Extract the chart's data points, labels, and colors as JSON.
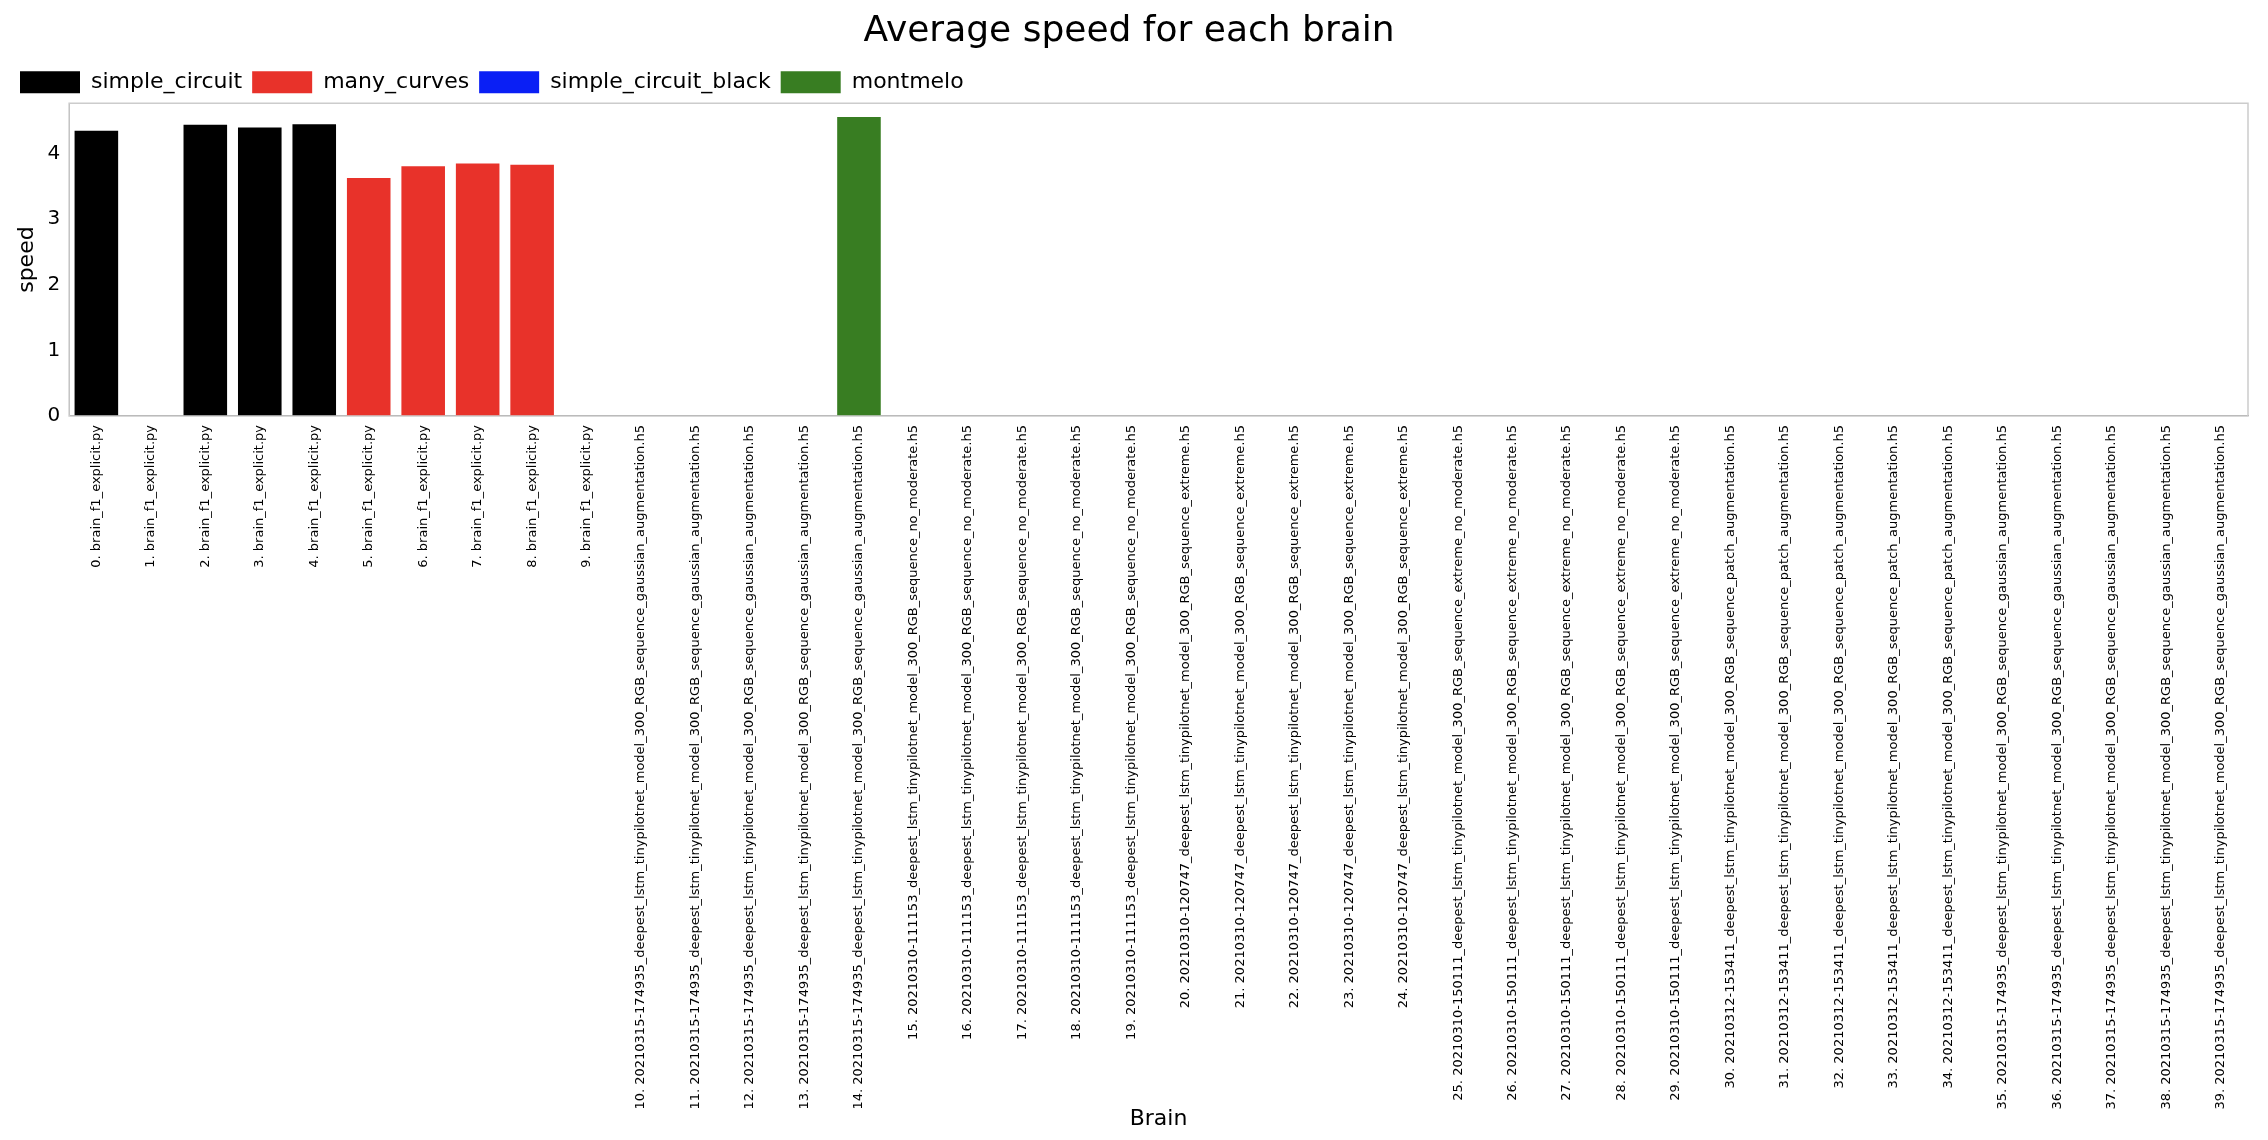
{
  "chart_data": {
    "type": "bar",
    "title": "Average speed for each brain",
    "xlabel": "Brain",
    "ylabel": "speed",
    "categories": [
      "0. brain_f1_explicit.py",
      "1. brain_f1_explicit.py",
      "2. brain_f1_explicit.py",
      "3. brain_f1_explicit.py",
      "4. brain_f1_explicit.py",
      "5. brain_f1_explicit.py",
      "6. brain_f1_explicit.py",
      "7. brain_f1_explicit.py",
      "8. brain_f1_explicit.py",
      "9. brain_f1_explicit.py",
      "10. 20210315-174935_deepest_lstm_tinypilotnet_model_300_RGB_sequence_gaussian_augmentation.h5",
      "11. 20210315-174935_deepest_lstm_tinypilotnet_model_300_RGB_sequence_gaussian_augmentation.h5",
      "12. 20210315-174935_deepest_lstm_tinypilotnet_model_300_RGB_sequence_gaussian_augmentation.h5",
      "13. 20210315-174935_deepest_lstm_tinypilotnet_model_300_RGB_sequence_gaussian_augmentation.h5",
      "14. 20210315-174935_deepest_lstm_tinypilotnet_model_300_RGB_sequence_gaussian_augmentation.h5",
      "15. 20210310-111153_deepest_lstm_tinypilotnet_model_300_RGB_sequence_no_moderate.h5",
      "16. 20210310-111153_deepest_lstm_tinypilotnet_model_300_RGB_sequence_no_moderate.h5",
      "17. 20210310-111153_deepest_lstm_tinypilotnet_model_300_RGB_sequence_no_moderate.h5",
      "18. 20210310-111153_deepest_lstm_tinypilotnet_model_300_RGB_sequence_no_moderate.h5",
      "19. 20210310-111153_deepest_lstm_tinypilotnet_model_300_RGB_sequence_no_moderate.h5",
      "20. 20210310-120747_deepest_lstm_tinypilotnet_model_300_RGB_sequence_extreme.h5",
      "21. 20210310-120747_deepest_lstm_tinypilotnet_model_300_RGB_sequence_extreme.h5",
      "22. 20210310-120747_deepest_lstm_tinypilotnet_model_300_RGB_sequence_extreme.h5",
      "23. 20210310-120747_deepest_lstm_tinypilotnet_model_300_RGB_sequence_extreme.h5",
      "24. 20210310-120747_deepest_lstm_tinypilotnet_model_300_RGB_sequence_extreme.h5",
      "25. 20210310-150111_deepest_lstm_tinypilotnet_model_300_RGB_sequence_extreme_no_moderate.h5",
      "26. 20210310-150111_deepest_lstm_tinypilotnet_model_300_RGB_sequence_extreme_no_moderate.h5",
      "27. 20210310-150111_deepest_lstm_tinypilotnet_model_300_RGB_sequence_extreme_no_moderate.h5",
      "28. 20210310-150111_deepest_lstm_tinypilotnet_model_300_RGB_sequence_extreme_no_moderate.h5",
      "29. 20210310-150111_deepest_lstm_tinypilotnet_model_300_RGB_sequence_extreme_no_moderate.h5",
      "30. 20210312-153411_deepest_lstm_tinypilotnet_model_300_RGB_sequence_patch_augmentation.h5",
      "31. 20210312-153411_deepest_lstm_tinypilotnet_model_300_RGB_sequence_patch_augmentation.h5",
      "32. 20210312-153411_deepest_lstm_tinypilotnet_model_300_RGB_sequence_patch_augmentation.h5",
      "33. 20210312-153411_deepest_lstm_tinypilotnet_model_300_RGB_sequence_patch_augmentation.h5",
      "34. 20210312-153411_deepest_lstm_tinypilotnet_model_300_RGB_sequence_patch_augmentation.h5",
      "35. 20210315-174935_deepest_lstm_tinypilotnet_model_300_RGB_sequence_gaussian_augmentation.h5",
      "36. 20210315-174935_deepest_lstm_tinypilotnet_model_300_RGB_sequence_gaussian_augmentation.h5",
      "37. 20210315-174935_deepest_lstm_tinypilotnet_model_300_RGB_sequence_gaussian_augmentation.h5",
      "38. 20210315-174935_deepest_lstm_tinypilotnet_model_300_RGB_sequence_gaussian_augmentation.h5",
      "39. 20210315-174935_deepest_lstm_tinypilotnet_model_300_RGB_sequence_gaussian_augmentation.h5"
    ],
    "series": [
      {
        "name": "simple_circuit",
        "color": "#000000",
        "values": [
          4.35,
          null,
          4.44,
          4.4,
          4.45,
          null,
          null,
          null,
          null,
          null,
          null,
          null,
          null,
          null,
          null,
          null,
          null,
          null,
          null,
          null,
          null,
          null,
          null,
          null,
          null,
          null,
          null,
          null,
          null,
          null,
          null,
          null,
          null,
          null,
          null,
          null,
          null,
          null,
          null,
          null
        ]
      },
      {
        "name": "many_curves",
        "color": "#e8322a",
        "values": [
          null,
          null,
          null,
          null,
          null,
          3.63,
          3.81,
          3.85,
          3.83,
          null,
          null,
          null,
          null,
          null,
          null,
          null,
          null,
          null,
          null,
          null,
          null,
          null,
          null,
          null,
          null,
          null,
          null,
          null,
          null,
          null,
          null,
          null,
          null,
          null,
          null,
          null,
          null,
          null,
          null,
          null
        ]
      },
      {
        "name": "simple_circuit_black",
        "color": "#0a1ff5",
        "values": [
          null,
          null,
          null,
          null,
          null,
          null,
          null,
          null,
          null,
          null,
          null,
          null,
          null,
          null,
          null,
          null,
          null,
          null,
          null,
          null,
          null,
          null,
          null,
          null,
          null,
          null,
          null,
          null,
          null,
          null,
          null,
          null,
          null,
          null,
          null,
          null,
          null,
          null,
          null,
          null
        ]
      },
      {
        "name": "montmelo",
        "color": "#387d22",
        "values": [
          null,
          null,
          null,
          null,
          null,
          null,
          null,
          null,
          null,
          null,
          null,
          null,
          null,
          null,
          4.56,
          null,
          null,
          null,
          null,
          null,
          null,
          null,
          null,
          null,
          null,
          null,
          null,
          null,
          null,
          null,
          null,
          null,
          null,
          null,
          null,
          null,
          null,
          null,
          null,
          null
        ]
      }
    ],
    "ylim": [
      0,
      4.77
    ],
    "yticks": [
      0,
      1,
      2,
      3,
      4
    ],
    "grid": false,
    "legend": "top left"
  }
}
